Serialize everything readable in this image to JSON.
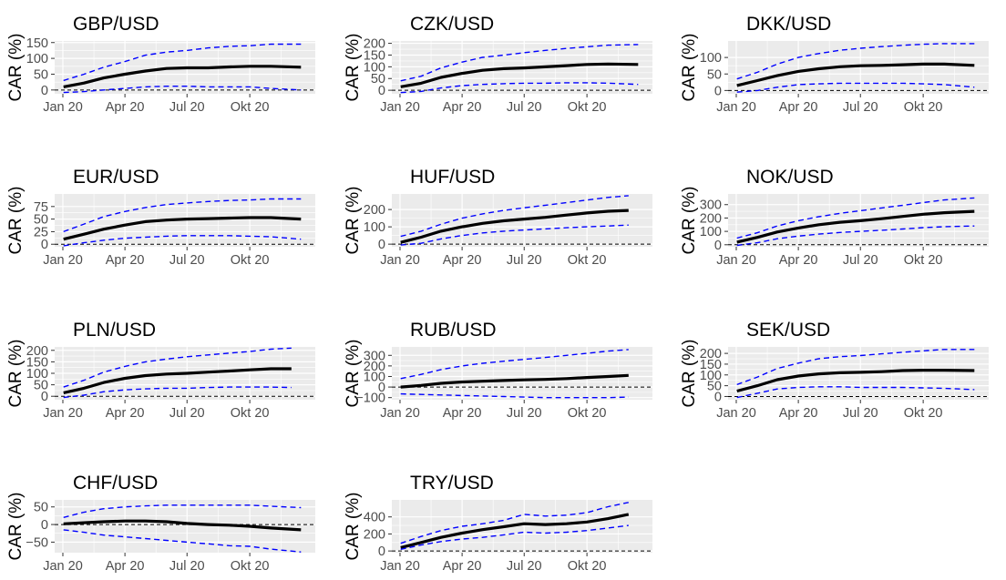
{
  "figure": {
    "x_tick_labels": [
      "Jan 20",
      "Apr 20",
      "Jul 20",
      "Okt 20"
    ],
    "y_axis_label": "CAR (%)"
  },
  "colors": {
    "panel_bg": "#ebebeb",
    "grid": "#ffffff",
    "car_line": "#000000",
    "band": "#0000ff",
    "zero_line": "#000000"
  },
  "chart_data": [
    {
      "type": "line",
      "title": "GBP/USD",
      "ylabel": "CAR (%)",
      "ylim": [
        -12,
        155
      ],
      "yticks": [
        0,
        50,
        100,
        150
      ],
      "x": [
        "2020-01-02",
        "2020-02-01",
        "2020-03-01",
        "2020-04-01",
        "2020-05-01",
        "2020-06-01",
        "2020-07-01",
        "2020-08-01",
        "2020-09-01",
        "2020-10-01",
        "2020-11-01",
        "2020-12-15"
      ],
      "series": [
        {
          "values": [
            10,
            22,
            38,
            50,
            60,
            68,
            70,
            70,
            73,
            75,
            75,
            72
          ]
        },
        {
          "values": [
            30,
            50,
            72,
            90,
            110,
            120,
            125,
            133,
            138,
            140,
            145,
            145
          ]
        },
        {
          "values": [
            -8,
            -5,
            0,
            5,
            10,
            12,
            12,
            10,
            10,
            10,
            5,
            0
          ]
        }
      ]
    },
    {
      "type": "line",
      "title": "CZK/USD",
      "ylabel": "CAR (%)",
      "ylim": [
        -15,
        210
      ],
      "yticks": [
        0,
        50,
        100,
        150,
        200
      ],
      "x": [
        "2020-01-02",
        "2020-02-01",
        "2020-03-01",
        "2020-04-01",
        "2020-05-01",
        "2020-06-01",
        "2020-07-01",
        "2020-08-01",
        "2020-09-01",
        "2020-10-01",
        "2020-11-01",
        "2020-12-15"
      ],
      "series": [
        {
          "values": [
            15,
            30,
            55,
            72,
            85,
            92,
            95,
            100,
            105,
            110,
            112,
            110
          ]
        },
        {
          "values": [
            40,
            60,
            95,
            120,
            140,
            150,
            160,
            170,
            178,
            185,
            192,
            195
          ]
        },
        {
          "values": [
            -10,
            -5,
            10,
            20,
            25,
            28,
            30,
            30,
            32,
            32,
            30,
            25
          ]
        }
      ]
    },
    {
      "type": "line",
      "title": "DKK/USD",
      "ylabel": "CAR (%)",
      "ylim": [
        -10,
        150
      ],
      "yticks": [
        0,
        50,
        100
      ],
      "x": [
        "2020-01-02",
        "2020-02-01",
        "2020-03-01",
        "2020-04-01",
        "2020-05-01",
        "2020-06-01",
        "2020-07-01",
        "2020-08-01",
        "2020-09-01",
        "2020-10-01",
        "2020-11-01",
        "2020-12-15"
      ],
      "series": [
        {
          "values": [
            15,
            30,
            45,
            58,
            66,
            72,
            75,
            76,
            78,
            80,
            80,
            76
          ]
        },
        {
          "values": [
            35,
            55,
            80,
            100,
            112,
            122,
            128,
            133,
            137,
            140,
            142,
            142
          ]
        },
        {
          "values": [
            -5,
            0,
            10,
            18,
            20,
            22,
            22,
            22,
            22,
            20,
            18,
            10
          ]
        }
      ]
    },
    {
      "type": "line",
      "title": "EUR/USD",
      "ylabel": "CAR (%)",
      "ylim": [
        -5,
        100
      ],
      "yticks": [
        0,
        25,
        50,
        75
      ],
      "x": [
        "2020-01-02",
        "2020-02-01",
        "2020-03-01",
        "2020-04-01",
        "2020-05-01",
        "2020-06-01",
        "2020-07-01",
        "2020-08-01",
        "2020-09-01",
        "2020-10-01",
        "2020-11-01",
        "2020-12-15"
      ],
      "series": [
        {
          "values": [
            10,
            20,
            30,
            38,
            45,
            48,
            50,
            51,
            52,
            53,
            53,
            50
          ]
        },
        {
          "values": [
            25,
            40,
            55,
            65,
            73,
            79,
            82,
            85,
            87,
            88,
            90,
            90
          ]
        },
        {
          "values": [
            -3,
            3,
            8,
            12,
            14,
            16,
            17,
            17,
            17,
            16,
            15,
            10
          ]
        }
      ]
    },
    {
      "type": "line",
      "title": "HUF/USD",
      "ylabel": "CAR (%)",
      "ylim": [
        -15,
        290
      ],
      "yticks": [
        0,
        100,
        200
      ],
      "x": [
        "2020-01-02",
        "2020-02-01",
        "2020-03-01",
        "2020-04-01",
        "2020-05-01",
        "2020-06-01",
        "2020-07-01",
        "2020-08-01",
        "2020-09-01",
        "2020-10-01",
        "2020-11-01",
        "2020-12-01"
      ],
      "series": [
        {
          "values": [
            10,
            40,
            75,
            100,
            120,
            135,
            145,
            155,
            168,
            180,
            190,
            195
          ]
        },
        {
          "values": [
            45,
            75,
            115,
            150,
            175,
            195,
            210,
            225,
            240,
            255,
            270,
            280
          ]
        },
        {
          "values": [
            -5,
            5,
            30,
            50,
            65,
            75,
            82,
            88,
            95,
            100,
            105,
            110
          ]
        }
      ]
    },
    {
      "type": "line",
      "title": "NOK/USD",
      "ylabel": "CAR (%)",
      "ylim": [
        -15,
        380
      ],
      "yticks": [
        0,
        100,
        200,
        300
      ],
      "x": [
        "2020-01-02",
        "2020-02-01",
        "2020-03-01",
        "2020-04-01",
        "2020-05-01",
        "2020-06-01",
        "2020-07-01",
        "2020-08-01",
        "2020-09-01",
        "2020-10-01",
        "2020-11-01",
        "2020-12-15"
      ],
      "series": [
        {
          "values": [
            20,
            55,
            95,
            125,
            150,
            168,
            180,
            195,
            212,
            228,
            240,
            250
          ]
        },
        {
          "values": [
            50,
            90,
            140,
            180,
            210,
            235,
            255,
            275,
            295,
            315,
            335,
            350
          ]
        },
        {
          "values": [
            -5,
            15,
            45,
            65,
            80,
            92,
            100,
            108,
            118,
            128,
            135,
            140
          ]
        }
      ]
    },
    {
      "type": "line",
      "title": "PLN/USD",
      "ylabel": "CAR (%)",
      "ylim": [
        -15,
        215
      ],
      "yticks": [
        0,
        50,
        100,
        150,
        200
      ],
      "x": [
        "2020-01-02",
        "2020-02-01",
        "2020-03-01",
        "2020-04-01",
        "2020-05-01",
        "2020-06-01",
        "2020-07-01",
        "2020-08-01",
        "2020-09-01",
        "2020-10-01",
        "2020-11-01",
        "2020-12-01"
      ],
      "series": [
        {
          "values": [
            15,
            35,
            60,
            78,
            90,
            97,
            100,
            105,
            110,
            115,
            120,
            120
          ]
        },
        {
          "values": [
            40,
            70,
            105,
            130,
            150,
            162,
            172,
            180,
            188,
            195,
            205,
            210
          ]
        },
        {
          "values": [
            -5,
            5,
            20,
            28,
            32,
            35,
            35,
            38,
            40,
            40,
            40,
            38
          ]
        }
      ]
    },
    {
      "type": "line",
      "title": "RUB/USD",
      "ylabel": "CAR (%)",
      "ylim": [
        -120,
        380
      ],
      "yticks": [
        -100,
        0,
        100,
        200,
        300
      ],
      "x": [
        "2020-01-02",
        "2020-02-01",
        "2020-03-01",
        "2020-04-01",
        "2020-05-01",
        "2020-06-01",
        "2020-07-01",
        "2020-08-01",
        "2020-09-01",
        "2020-10-01",
        "2020-11-01",
        "2020-12-01"
      ],
      "series": [
        {
          "values": [
            0,
            15,
            35,
            48,
            55,
            62,
            68,
            72,
            80,
            90,
            100,
            110
          ]
        },
        {
          "values": [
            80,
            120,
            165,
            200,
            225,
            245,
            262,
            280,
            300,
            320,
            340,
            355
          ]
        },
        {
          "values": [
            -65,
            -70,
            -75,
            -80,
            -85,
            -90,
            -95,
            -100,
            -100,
            -100,
            -100,
            -95
          ]
        }
      ]
    },
    {
      "type": "line",
      "title": "SEK/USD",
      "ylabel": "CAR (%)",
      "ylim": [
        -15,
        230
      ],
      "yticks": [
        0,
        50,
        100,
        150,
        200
      ],
      "x": [
        "2020-01-02",
        "2020-02-01",
        "2020-03-01",
        "2020-04-01",
        "2020-05-01",
        "2020-06-01",
        "2020-07-01",
        "2020-08-01",
        "2020-09-01",
        "2020-10-01",
        "2020-11-01",
        "2020-12-15"
      ],
      "series": [
        {
          "values": [
            25,
            50,
            78,
            95,
            105,
            110,
            112,
            115,
            120,
            122,
            122,
            120
          ]
        },
        {
          "values": [
            55,
            90,
            130,
            155,
            175,
            185,
            190,
            198,
            205,
            212,
            218,
            218
          ]
        },
        {
          "values": [
            -5,
            15,
            35,
            42,
            45,
            45,
            42,
            42,
            42,
            40,
            38,
            32
          ]
        }
      ]
    },
    {
      "type": "line",
      "title": "CHF/USD",
      "ylabel": "CAR (%)",
      "ylim": [
        -80,
        70
      ],
      "yticks": [
        -50,
        0,
        50
      ],
      "x": [
        "2020-01-02",
        "2020-02-01",
        "2020-03-01",
        "2020-04-01",
        "2020-05-01",
        "2020-06-01",
        "2020-07-01",
        "2020-08-01",
        "2020-09-01",
        "2020-10-01",
        "2020-11-01",
        "2020-12-15"
      ],
      "series": [
        {
          "values": [
            2,
            5,
            8,
            10,
            10,
            8,
            3,
            0,
            -2,
            -5,
            -10,
            -15
          ]
        },
        {
          "values": [
            20,
            35,
            45,
            50,
            53,
            55,
            55,
            55,
            55,
            55,
            52,
            48
          ]
        },
        {
          "values": [
            -15,
            -22,
            -30,
            -35,
            -40,
            -45,
            -50,
            -55,
            -60,
            -62,
            -70,
            -78
          ]
        }
      ]
    },
    {
      "type": "line",
      "title": "TRY/USD",
      "ylabel": "CAR (%)",
      "ylim": [
        -20,
        600
      ],
      "yticks": [
        0,
        200,
        400
      ],
      "x": [
        "2020-01-02",
        "2020-02-01",
        "2020-03-01",
        "2020-04-01",
        "2020-05-01",
        "2020-06-01",
        "2020-07-01",
        "2020-08-01",
        "2020-09-01",
        "2020-10-01",
        "2020-11-01",
        "2020-12-01"
      ],
      "series": [
        {
          "values": [
            40,
            100,
            160,
            210,
            250,
            285,
            320,
            310,
            320,
            340,
            380,
            430
          ]
        },
        {
          "values": [
            90,
            170,
            240,
            290,
            320,
            360,
            430,
            410,
            420,
            450,
            520,
            570
          ]
        },
        {
          "values": [
            20,
            70,
            110,
            140,
            160,
            190,
            220,
            210,
            220,
            240,
            270,
            300
          ]
        }
      ]
    }
  ]
}
